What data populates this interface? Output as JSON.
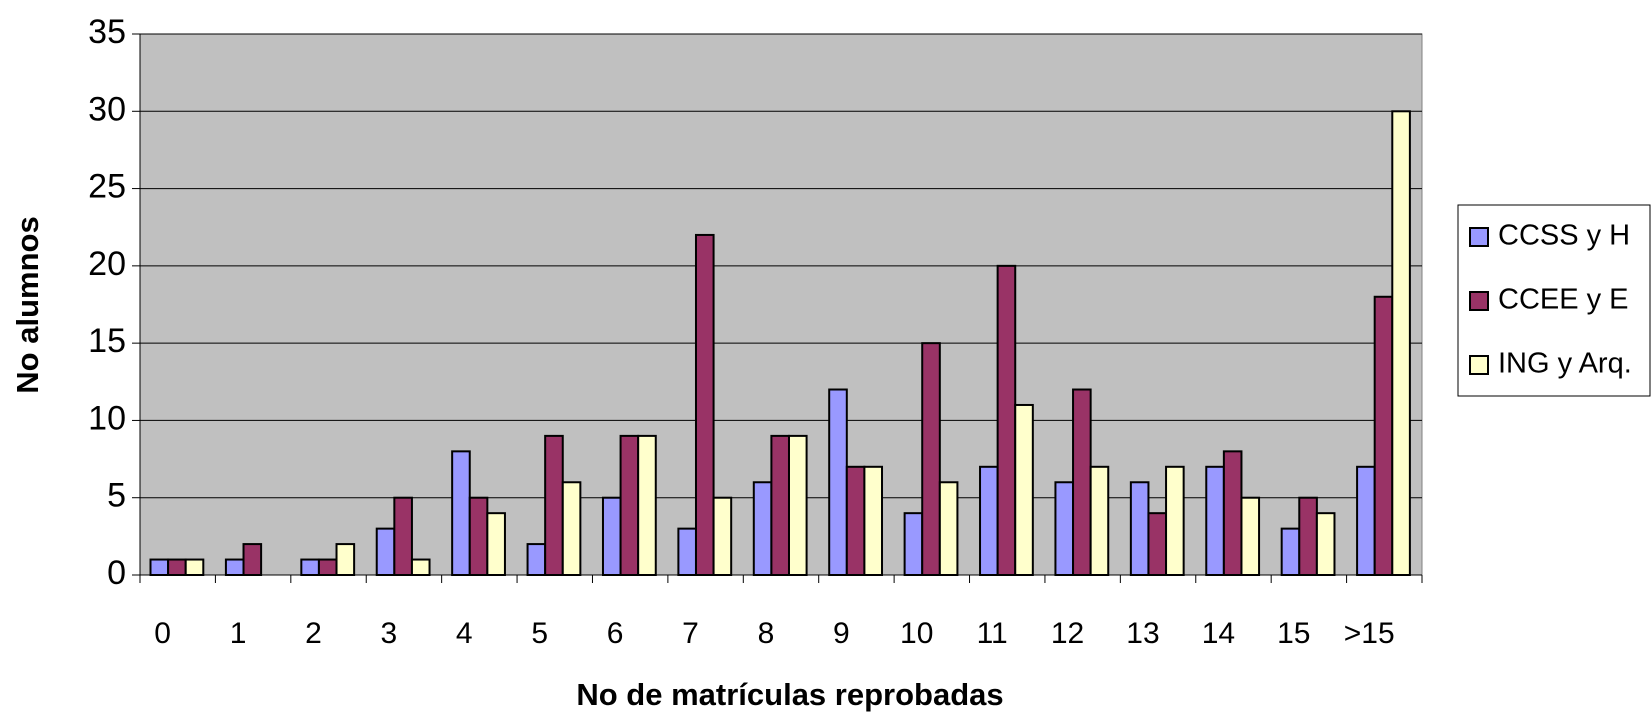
{
  "chart_data": {
    "type": "bar",
    "x_label": "No de matrículas reprobadas",
    "y_label": "No alumnos",
    "categories": [
      "0",
      "1",
      "2",
      "3",
      "4",
      "5",
      "6",
      "7",
      "8",
      "9",
      "10",
      "11",
      "12",
      "13",
      "14",
      "15",
      ">15"
    ],
    "series": [
      {
        "name": "CCSS y H",
        "color": "#9999ff",
        "values": [
          1,
          1,
          1,
          3,
          8,
          2,
          5,
          3,
          6,
          12,
          4,
          7,
          6,
          6,
          7,
          3,
          7
        ]
      },
      {
        "name": "CCEE y E",
        "color": "#993366",
        "values": [
          1,
          2,
          1,
          5,
          5,
          9,
          9,
          22,
          9,
          7,
          15,
          20,
          12,
          4,
          8,
          5,
          18
        ]
      },
      {
        "name": "ING y Arq.",
        "color": "#ffffcc",
        "values": [
          1,
          0,
          2,
          1,
          4,
          6,
          9,
          5,
          9,
          7,
          6,
          11,
          7,
          7,
          5,
          4,
          30
        ]
      }
    ],
    "ylim": [
      0,
      35
    ],
    "yticks": [
      0,
      5,
      10,
      15,
      20,
      25,
      30,
      35
    ],
    "grid": true,
    "legend": "right"
  }
}
